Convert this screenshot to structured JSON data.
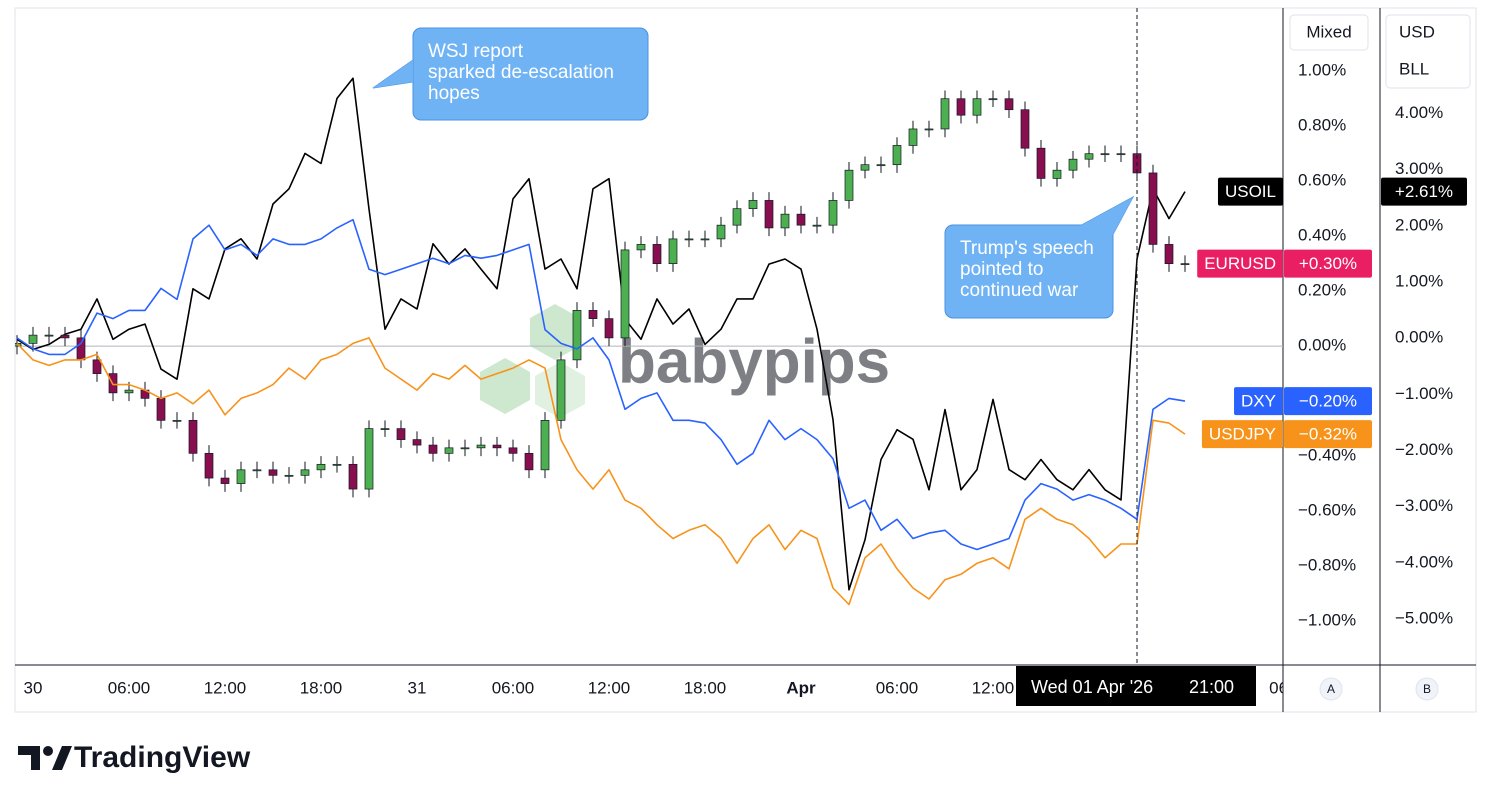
{
  "ui": {
    "scale_mode": "Mixed",
    "currency": "USD",
    "unit": "BLL",
    "axis_a": "A",
    "axis_b": "B",
    "brand": "TradingView",
    "watermark": "babypips"
  },
  "chart_data": {
    "type": "line",
    "x": [
      -1,
      0,
      1,
      2,
      3,
      4,
      5,
      6,
      7,
      8,
      9,
      10,
      11,
      12,
      13,
      14,
      15,
      16,
      17,
      18,
      19,
      20,
      21,
      22,
      23,
      24,
      25,
      26,
      27,
      28,
      29,
      30,
      31,
      32,
      33,
      34,
      35,
      36,
      37,
      38,
      39,
      40,
      41,
      42,
      43,
      44,
      45,
      46,
      47,
      48,
      49,
      50,
      51,
      52,
      53,
      54,
      55,
      56,
      57,
      58,
      59,
      60,
      61,
      62,
      63,
      64,
      65,
      66,
      67,
      68,
      69,
      70,
      71,
      72
    ],
    "xlim": [
      -1.125,
      78.125
    ],
    "xticks": [
      {
        "value": 0,
        "label": "30"
      },
      {
        "value": 6,
        "label": "06:00"
      },
      {
        "value": 12,
        "label": "12:00"
      },
      {
        "value": 18,
        "label": "18:00"
      },
      {
        "value": 24,
        "label": "31"
      },
      {
        "value": 30,
        "label": "06:00"
      },
      {
        "value": 36,
        "label": "12:00"
      },
      {
        "value": 42,
        "label": "18:00"
      },
      {
        "value": 48,
        "label": "Apr",
        "bold": true
      },
      {
        "value": 54,
        "label": "06:00"
      },
      {
        "value": 60,
        "label": "12:00"
      },
      {
        "value": 78,
        "label": "06:"
      }
    ],
    "ylim": [
      -1.16,
      1.23
    ],
    "yticks": [
      {
        "value": 1,
        "label": "1.00%"
      },
      {
        "value": 0.8,
        "label": "0.80%"
      },
      {
        "value": 0.6,
        "label": "0.60%"
      },
      {
        "value": 0.4,
        "label": "0.40%"
      },
      {
        "value": 0.2,
        "label": "0.20%"
      },
      {
        "value": 0,
        "label": "0.00%"
      },
      {
        "value": -0.4,
        "label": "−0.40%"
      },
      {
        "value": -0.6,
        "label": "−0.60%"
      },
      {
        "value": -0.8,
        "label": "−0.80%"
      },
      {
        "value": -1,
        "label": "−1.00%"
      }
    ],
    "y2lim": [
      -5.82,
      5.88
    ],
    "y2ticks": [
      {
        "value": 4,
        "label": "4.00%"
      },
      {
        "value": 3,
        "label": "3.00%"
      },
      {
        "value": 2,
        "label": "2.00%"
      },
      {
        "value": 1,
        "label": "1.00%"
      },
      {
        "value": 0,
        "label": "0.00%"
      },
      {
        "value": -1,
        "label": "−1.00%"
      },
      {
        "value": -2,
        "label": "−2.00%"
      },
      {
        "value": -3,
        "label": "−3.00%"
      },
      {
        "value": -4,
        "label": "−4.00%"
      },
      {
        "value": -5,
        "label": "−5.00%"
      }
    ],
    "grid": false,
    "zero_line": true,
    "series": [
      {
        "name": "USOIL",
        "type": "line",
        "axis": "y2",
        "color": "#000000",
        "last_label": "+2.61%",
        "values": [
          -0.02,
          -0.2,
          -0.11,
          0.07,
          0.16,
          0.7,
          -0.02,
          0.16,
          0.25,
          -0.55,
          -0.73,
          0.88,
          0.7,
          1.59,
          1.77,
          1.41,
          2.39,
          2.66,
          3.29,
          3.11,
          4.27,
          4.63,
          2.3,
          0.16,
          0.7,
          0.52,
          1.68,
          1.32,
          1.59,
          1.23,
          0.88,
          2.48,
          2.84,
          1.23,
          1.41,
          0.88,
          2.66,
          2.84,
          0.34,
          -0.02,
          0.7,
          0.25,
          0.52,
          -0.11,
          0.16,
          0.7,
          0.7,
          1.32,
          1.41,
          1.23,
          0.16,
          -1.45,
          -4.48,
          -3.59,
          -2.16,
          -1.63,
          -1.8,
          -2.7,
          -1.27,
          -2.7,
          -2.34,
          -1.09,
          -2.34,
          -2.52,
          -2.16,
          -2.52,
          -2.7,
          -2.34,
          -2.7,
          -2.88,
          1.41,
          2.66,
          2.13,
          2.61
        ]
      },
      {
        "name": "EURUSD",
        "type": "candlestick",
        "color": "#e91e63",
        "up_color": "#4caf50",
        "down_color": "#880e4f",
        "last_label": "+0.30%",
        "open": [
          0.0,
          0.01,
          0.04,
          0.04,
          0.03,
          -0.05,
          -0.1,
          -0.17,
          -0.16,
          -0.19,
          -0.27,
          -0.27,
          -0.39,
          -0.48,
          -0.5,
          -0.45,
          -0.45,
          -0.47,
          -0.47,
          -0.45,
          -0.43,
          -0.43,
          -0.52,
          -0.3,
          -0.3,
          -0.34,
          -0.36,
          -0.39,
          -0.37,
          -0.37,
          -0.36,
          -0.37,
          -0.39,
          -0.45,
          -0.27,
          -0.05,
          0.13,
          0.1,
          0.03,
          0.35,
          0.37,
          0.3,
          0.39,
          0.39,
          0.39,
          0.44,
          0.5,
          0.53,
          0.43,
          0.48,
          0.44,
          0.44,
          0.53,
          0.64,
          0.66,
          0.66,
          0.73,
          0.79,
          0.79,
          0.9,
          0.84,
          0.9,
          0.9,
          0.86,
          0.72,
          0.61,
          0.64,
          0.68,
          0.7,
          0.7,
          0.7,
          0.63,
          0.37,
          0.3
        ],
        "high": [
          0.04,
          0.07,
          0.07,
          0.07,
          0.06,
          -0.02,
          -0.07,
          -0.13,
          -0.13,
          -0.16,
          -0.24,
          -0.24,
          -0.36,
          -0.45,
          -0.42,
          -0.42,
          -0.42,
          -0.44,
          -0.42,
          -0.4,
          -0.4,
          -0.4,
          -0.27,
          -0.27,
          -0.27,
          -0.31,
          -0.33,
          -0.34,
          -0.34,
          -0.33,
          -0.33,
          -0.34,
          -0.36,
          -0.24,
          -0.02,
          0.16,
          0.16,
          0.13,
          0.38,
          0.4,
          0.4,
          0.42,
          0.42,
          0.42,
          0.47,
          0.53,
          0.56,
          0.56,
          0.51,
          0.51,
          0.47,
          0.56,
          0.67,
          0.69,
          0.69,
          0.76,
          0.82,
          0.82,
          0.93,
          0.93,
          0.93,
          0.93,
          0.93,
          0.89,
          0.75,
          0.67,
          0.71,
          0.73,
          0.73,
          0.73,
          0.73,
          0.66,
          0.4,
          0.33
        ],
        "low": [
          -0.03,
          -0.02,
          0.01,
          0.0,
          -0.08,
          -0.13,
          -0.2,
          -0.2,
          -0.22,
          -0.3,
          -0.3,
          -0.42,
          -0.51,
          -0.53,
          -0.53,
          -0.48,
          -0.5,
          -0.5,
          -0.5,
          -0.48,
          -0.46,
          -0.55,
          -0.55,
          -0.33,
          -0.37,
          -0.39,
          -0.42,
          -0.42,
          -0.4,
          -0.4,
          -0.4,
          -0.42,
          -0.48,
          -0.48,
          -0.3,
          -0.08,
          0.07,
          0.0,
          0.0,
          0.32,
          0.27,
          0.27,
          0.36,
          0.36,
          0.36,
          0.41,
          0.47,
          0.4,
          0.4,
          0.41,
          0.41,
          0.41,
          0.5,
          0.61,
          0.63,
          0.63,
          0.7,
          0.76,
          0.76,
          0.81,
          0.81,
          0.87,
          0.83,
          0.69,
          0.58,
          0.58,
          0.61,
          0.65,
          0.67,
          0.67,
          0.6,
          0.34,
          0.27,
          0.27
        ],
        "close": [
          0.01,
          0.04,
          0.04,
          0.03,
          -0.05,
          -0.1,
          -0.17,
          -0.16,
          -0.19,
          -0.27,
          -0.27,
          -0.39,
          -0.48,
          -0.5,
          -0.45,
          -0.45,
          -0.47,
          -0.47,
          -0.45,
          -0.43,
          -0.43,
          -0.52,
          -0.3,
          -0.3,
          -0.34,
          -0.36,
          -0.39,
          -0.37,
          -0.37,
          -0.36,
          -0.37,
          -0.39,
          -0.45,
          -0.27,
          -0.05,
          0.13,
          0.1,
          0.03,
          0.35,
          0.37,
          0.3,
          0.39,
          0.39,
          0.39,
          0.44,
          0.5,
          0.53,
          0.43,
          0.48,
          0.44,
          0.44,
          0.53,
          0.64,
          0.66,
          0.66,
          0.73,
          0.79,
          0.79,
          0.9,
          0.84,
          0.9,
          0.9,
          0.86,
          0.72,
          0.61,
          0.64,
          0.68,
          0.7,
          0.7,
          0.7,
          0.63,
          0.37,
          0.3,
          0.3
        ]
      },
      {
        "name": "DXY",
        "type": "line",
        "color": "#2962ff",
        "last_label": "−0.20%",
        "values": [
          0.03,
          -0.01,
          -0.03,
          -0.03,
          0.01,
          0.12,
          0.1,
          0.13,
          0.13,
          0.21,
          0.17,
          0.39,
          0.44,
          0.35,
          0.37,
          0.33,
          0.39,
          0.37,
          0.37,
          0.39,
          0.43,
          0.46,
          0.28,
          0.26,
          0.28,
          0.3,
          0.32,
          0.3,
          0.33,
          0.32,
          0.33,
          0.35,
          0.37,
          0.06,
          0.01,
          -0.01,
          0.03,
          -0.05,
          -0.23,
          -0.19,
          -0.17,
          -0.27,
          -0.27,
          -0.28,
          -0.34,
          -0.43,
          -0.39,
          -0.27,
          -0.34,
          -0.3,
          -0.34,
          -0.41,
          -0.59,
          -0.56,
          -0.67,
          -0.63,
          -0.7,
          -0.68,
          -0.67,
          -0.72,
          -0.74,
          -0.72,
          -0.7,
          -0.56,
          -0.5,
          -0.52,
          -0.56,
          -0.54,
          -0.56,
          -0.59,
          -0.63,
          -0.23,
          -0.19,
          -0.2
        ]
      },
      {
        "name": "USDJPY",
        "type": "line",
        "color": "#f7931a",
        "last_label": "−0.32%",
        "values": [
          0.01,
          -0.05,
          -0.07,
          -0.05,
          -0.05,
          -0.03,
          -0.14,
          -0.14,
          -0.16,
          -0.19,
          -0.17,
          -0.21,
          -0.16,
          -0.25,
          -0.19,
          -0.17,
          -0.14,
          -0.08,
          -0.12,
          -0.05,
          -0.03,
          0.01,
          0.03,
          -0.08,
          -0.12,
          -0.16,
          -0.1,
          -0.12,
          -0.07,
          -0.12,
          -0.1,
          -0.08,
          -0.05,
          -0.08,
          -0.34,
          -0.45,
          -0.52,
          -0.45,
          -0.56,
          -0.59,
          -0.65,
          -0.7,
          -0.67,
          -0.65,
          -0.7,
          -0.79,
          -0.7,
          -0.65,
          -0.74,
          -0.67,
          -0.7,
          -0.88,
          -0.94,
          -0.77,
          -0.72,
          -0.81,
          -0.88,
          -0.92,
          -0.85,
          -0.83,
          -0.79,
          -0.77,
          -0.81,
          -0.63,
          -0.59,
          -0.63,
          -0.65,
          -0.7,
          -0.77,
          -0.72,
          -0.72,
          -0.27,
          -0.28,
          -0.32
        ]
      }
    ],
    "crosshair": {
      "x": 69,
      "date_label": "Wed 01 Apr '26",
      "time_label": "21:00"
    },
    "annotations": [
      {
        "lines": [
          "WSJ report",
          "sparked de-escalation",
          "hopes"
        ]
      },
      {
        "lines": [
          "Trump's speech",
          "pointed to",
          "continued war"
        ]
      }
    ]
  }
}
